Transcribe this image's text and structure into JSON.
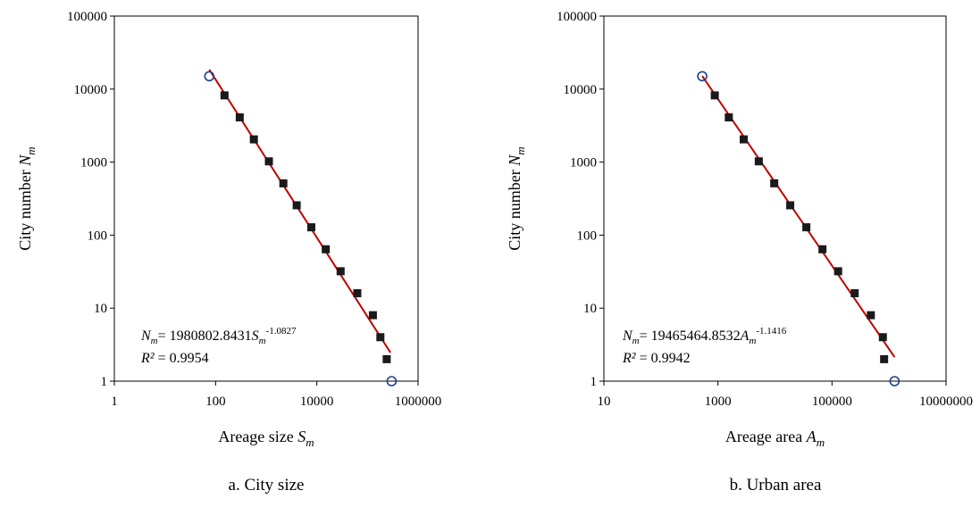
{
  "chart_data": [
    {
      "type": "scatter",
      "panel": "a",
      "caption": "a. City size",
      "xlabel": {
        "text": "Areage size ",
        "var": "S",
        "sub": "m"
      },
      "ylabel": {
        "text": "City number ",
        "var": "N",
        "sub": "m"
      },
      "x_scale": "log",
      "y_scale": "log",
      "xlim": [
        1,
        1000000
      ],
      "ylim": [
        1,
        100000
      ],
      "x_ticks": [
        1,
        100,
        10000,
        1000000
      ],
      "x_tick_labels": [
        "1",
        "100",
        "10000",
        "1000000"
      ],
      "y_ticks": [
        1,
        10,
        100,
        1000,
        10000,
        100000
      ],
      "y_tick_labels": [
        "1",
        "10",
        "100",
        "1000",
        "10000",
        "100000"
      ],
      "grid": false,
      "series": [
        {
          "marker": "filled-square",
          "color": "#1a1a1a",
          "x": [
            150,
            300,
            570,
            1130,
            2180,
            4000,
            7780,
            15000,
            29500,
            63000,
            128000,
            180000,
            240000
          ],
          "y": [
            8192,
            4096,
            2048,
            1024,
            512,
            256,
            128,
            64,
            32,
            16,
            8,
            4,
            2
          ]
        },
        {
          "marker": "open-circle",
          "color": "#1f3f8f",
          "x": [
            75,
            300000
          ],
          "y": [
            15000,
            1
          ]
        }
      ],
      "fit": {
        "color": "#c00000",
        "coefficient": 1980802.8431,
        "exponent": -1.0827,
        "x_range": [
          75,
          285000
        ]
      },
      "equation": {
        "lhs_var": "N",
        "lhs_sub": "m",
        "text": "= 1980802.8431",
        "rhs_var": "S",
        "rhs_sub": "m",
        "exponent": "-1.0827"
      },
      "r2": {
        "label": "R²",
        "text": " = 0.9954"
      }
    },
    {
      "type": "scatter",
      "panel": "b",
      "caption": "b. Urban area",
      "xlabel": {
        "text": "Areage area ",
        "var": "A",
        "sub": "m"
      },
      "ylabel": {
        "text": "City number ",
        "var": "N",
        "sub": "m"
      },
      "x_scale": "log",
      "y_scale": "log",
      "xlim": [
        10,
        10000000
      ],
      "ylim": [
        1,
        100000
      ],
      "x_ticks": [
        10,
        1000,
        100000,
        10000000
      ],
      "x_tick_labels": [
        "10",
        "1000",
        "100000",
        "10000000"
      ],
      "y_ticks": [
        1,
        10,
        100,
        1000,
        10000,
        100000
      ],
      "y_tick_labels": [
        "1",
        "10",
        "100",
        "1000",
        "10000",
        "100000"
      ],
      "grid": false,
      "series": [
        {
          "marker": "filled-square",
          "color": "#1a1a1a",
          "x": [
            880,
            1550,
            2830,
            5200,
            9700,
            18500,
            35500,
            68000,
            128000,
            250000,
            480000,
            780000,
            820000
          ],
          "y": [
            8192,
            4096,
            2048,
            1024,
            512,
            256,
            128,
            64,
            32,
            16,
            8,
            4,
            2
          ]
        },
        {
          "marker": "open-circle",
          "color": "#1f3f8f",
          "x": [
            530,
            1250000
          ],
          "y": [
            15000,
            1
          ]
        }
      ],
      "fit": {
        "color": "#c00000",
        "coefficient": 19465464.8532,
        "exponent": -1.1416,
        "x_range": [
          530,
          1250000
        ]
      },
      "equation": {
        "lhs_var": "N",
        "lhs_sub": "m",
        "text": "= 19465464.8532",
        "rhs_var": "A",
        "rhs_sub": "m",
        "exponent": "-1.1416"
      },
      "r2": {
        "label": "R²",
        "text": " = 0.9942"
      }
    }
  ]
}
